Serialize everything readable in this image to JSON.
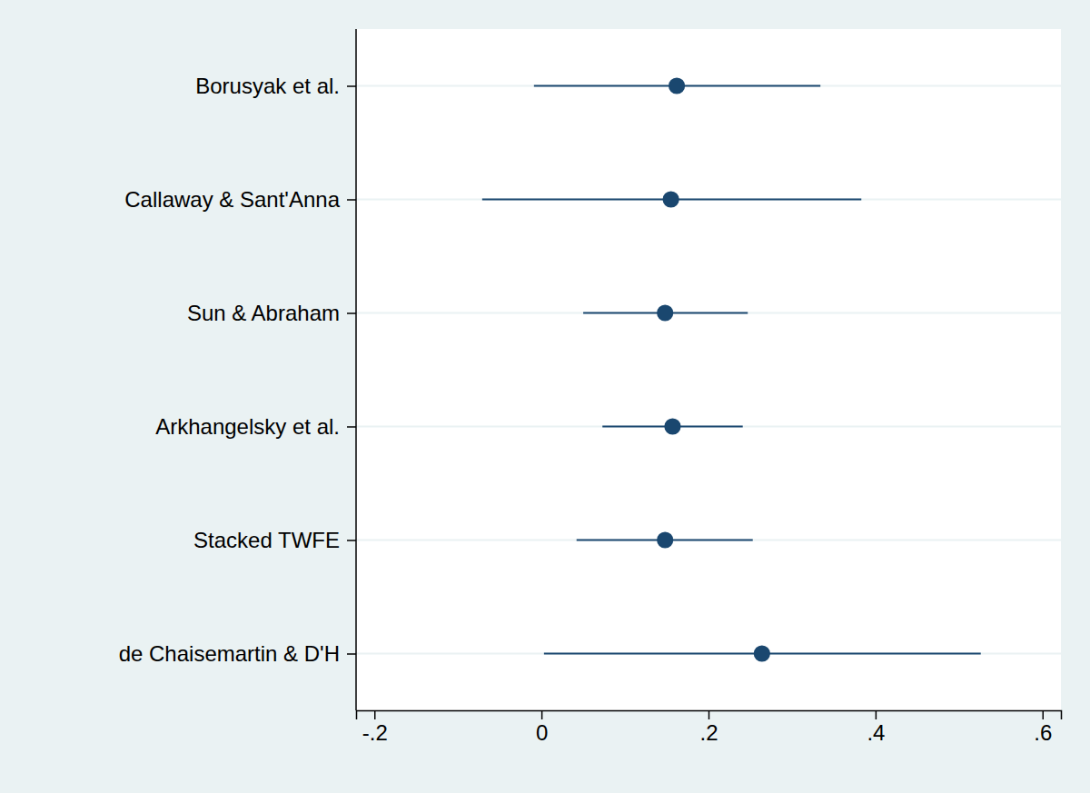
{
  "chart_data": {
    "type": "dot",
    "orientation": "horizontal",
    "categories": [
      "Borusyak et al.",
      "Callaway & Sant'Anna",
      "Sun & Abraham",
      "Arkhangelsky et al.",
      "Stacked TWFE",
      "de Chaisemartin & D'H"
    ],
    "values": [
      0.162,
      0.155,
      0.148,
      0.157,
      0.148,
      0.264
    ],
    "ci_low": [
      -0.009,
      -0.071,
      0.05,
      0.073,
      0.042,
      0.003
    ],
    "ci_high": [
      0.334,
      0.383,
      0.247,
      0.241,
      0.253,
      0.526
    ],
    "color": "#1a476f",
    "marker": "circle",
    "xlim": [
      -0.222,
      0.622
    ],
    "xticks": [
      {
        "value": -0.2,
        "label": "-.2"
      },
      0,
      {
        "value": 0.2,
        "label": ".2"
      },
      {
        "value": 0.4,
        "label": ".4"
      },
      {
        "value": 0.6,
        "label": ".6"
      }
    ],
    "grid": true
  }
}
